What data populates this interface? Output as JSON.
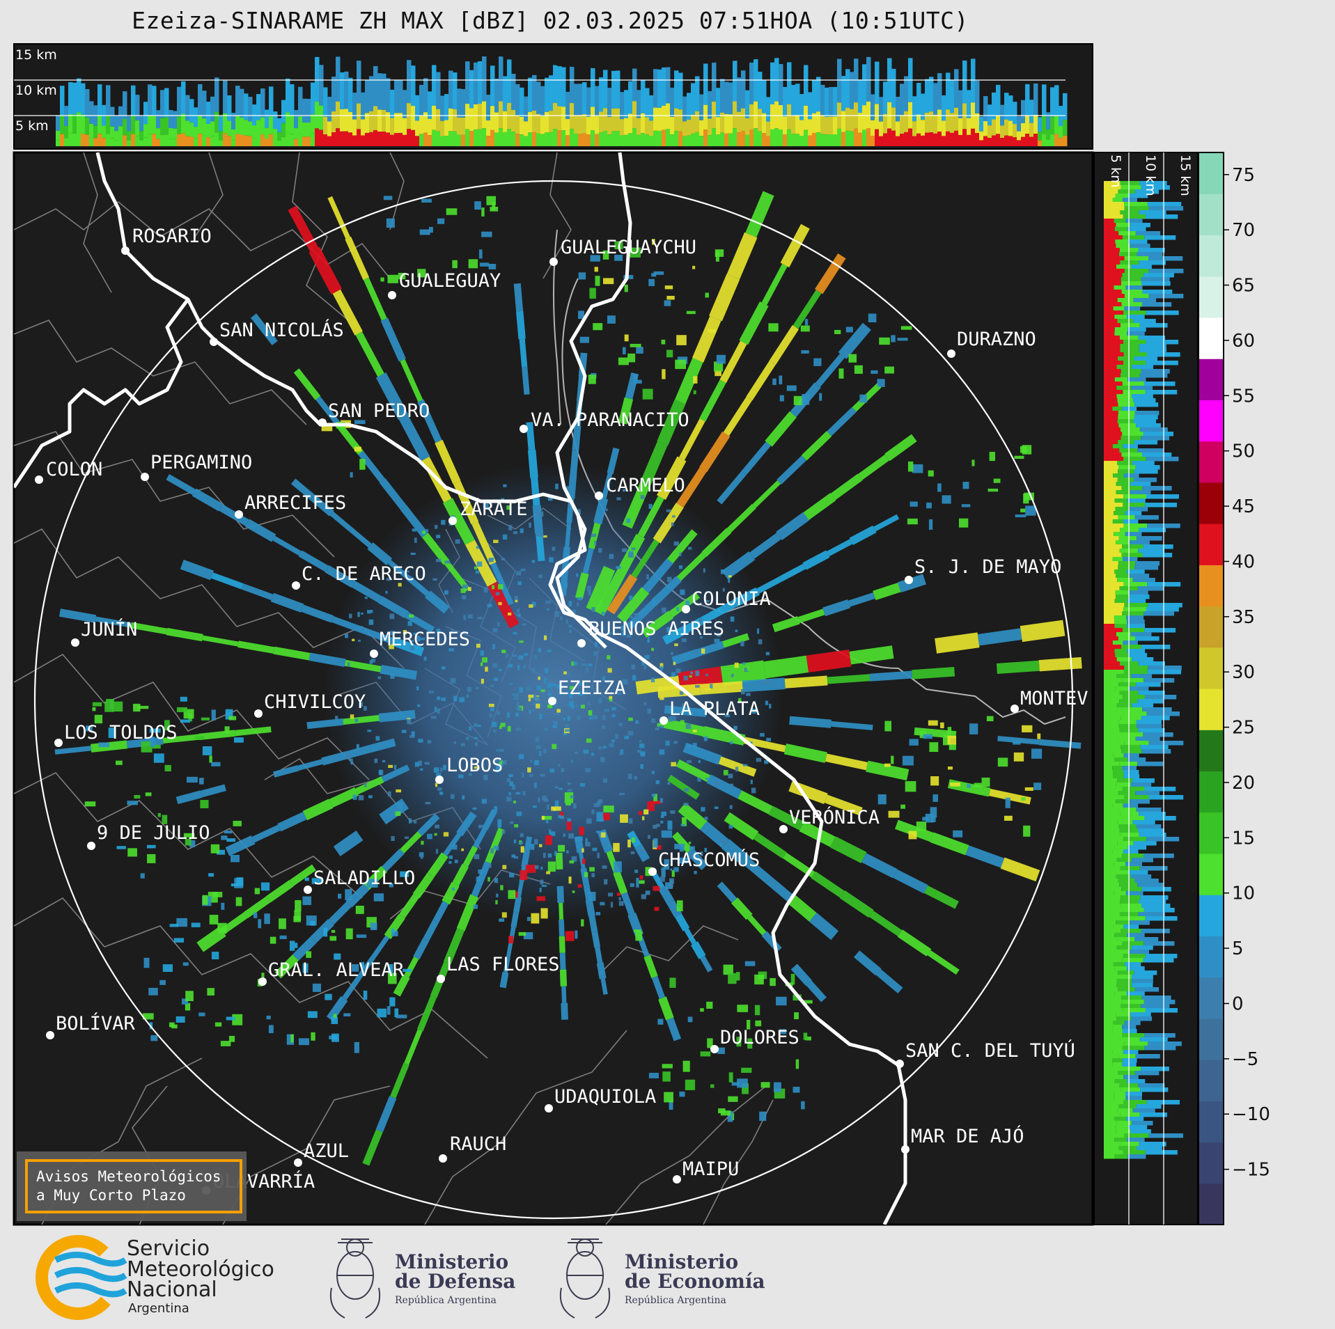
{
  "title": "Ezeiza-SINARAME ZH MAX [dBZ] 02.03.2025 07:51HOA (10:51UTC)",
  "top_panel": {
    "height_labels": [
      "15 km",
      "10 km",
      "5 km"
    ]
  },
  "side_panel": {
    "height_labels": [
      "5 km",
      "10 km",
      "15 km"
    ]
  },
  "colorbar": {
    "unit": "dBZ",
    "ticks": [
      "75",
      "70",
      "65",
      "60",
      "55",
      "50",
      "45",
      "40",
      "35",
      "30",
      "25",
      "20",
      "15",
      "10",
      "5",
      "0",
      "−5",
      "−10",
      "−15"
    ],
    "colors": [
      "#39365e",
      "#3a4470",
      "#3b5582",
      "#3d6590",
      "#3e729c",
      "#3c7fae",
      "#2f8fc4",
      "#25a6dc",
      "#4de02e",
      "#39c327",
      "#2aa321",
      "#23791a",
      "#e5e32e",
      "#cfc82c",
      "#c9a22a",
      "#e8901f",
      "#e0111e",
      "#9b0008",
      "#cf0060",
      "#ff00ff",
      "#a1009c",
      "#ffffff",
      "#d8f2e8",
      "#bfe9d8",
      "#a2e0c8",
      "#86d6b8"
    ],
    "min": -20,
    "max": 77
  },
  "cities": [
    {
      "name": "ROSARIO"
    },
    {
      "name": "GUALEGUAYCHU"
    },
    {
      "name": "GUALEGUAY"
    },
    {
      "name": "SAN NICOLÁS"
    },
    {
      "name": "DURAZNO"
    },
    {
      "name": "SAN PEDRO"
    },
    {
      "name": "VA. PARANACITO"
    },
    {
      "name": "COLON"
    },
    {
      "name": "PERGAMINO"
    },
    {
      "name": "CARMELO"
    },
    {
      "name": "ARRECIFES"
    },
    {
      "name": "ZÁRATE"
    },
    {
      "name": "S. J. DE MAYO"
    },
    {
      "name": "C. DE ARECO"
    },
    {
      "name": "COLONIA"
    },
    {
      "name": "JUNÍN"
    },
    {
      "name": "BUENOS AIRES"
    },
    {
      "name": "MERCEDES"
    },
    {
      "name": "EZEIZA"
    },
    {
      "name": "MONTEV"
    },
    {
      "name": "CHIVILCOY"
    },
    {
      "name": "LA PLATA"
    },
    {
      "name": "LOS TOLDOS"
    },
    {
      "name": "LOBOS"
    },
    {
      "name": "VERÓNICA"
    },
    {
      "name": "9 DE JULIO"
    },
    {
      "name": "CHASCOMÚS"
    },
    {
      "name": "SALADILLO"
    },
    {
      "name": "GRAL. ALVEAR"
    },
    {
      "name": "LAS FLORES"
    },
    {
      "name": "BOLÍVAR"
    },
    {
      "name": "DOLORES"
    },
    {
      "name": "SAN C. DEL TUYÚ"
    },
    {
      "name": "UDAQUIOLA"
    },
    {
      "name": "AZUL"
    },
    {
      "name": "RAUCH"
    },
    {
      "name": "MAR DE AJÓ"
    },
    {
      "name": "OLAVARRÍA"
    },
    {
      "name": "MAIPU"
    }
  ],
  "warning_box": {
    "line1": "Avisos Meteorológicos",
    "line2": "a Muy Corto Plazo"
  },
  "logos": {
    "smn": {
      "line1": "Servicio",
      "line2": "Meteorológico",
      "line3": "Nacional",
      "line4": "Argentina"
    },
    "defensa": {
      "line1": "Ministerio",
      "line2": "de Defensa",
      "line3": "República Argentina"
    },
    "economia": {
      "line1": "Ministerio",
      "line2": "de Economía",
      "line3": "República Argentina"
    }
  }
}
